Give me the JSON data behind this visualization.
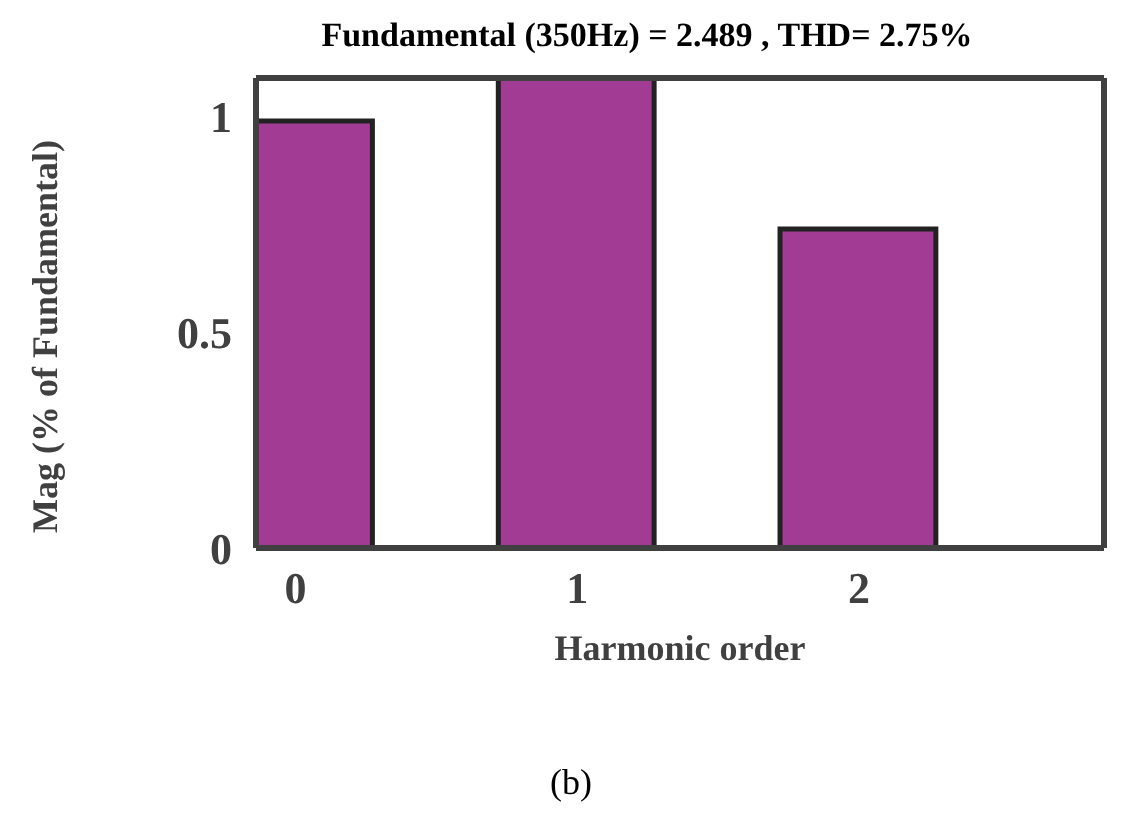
{
  "chart_data": {
    "type": "bar",
    "title": "Fundamental (350Hz) = 2.489 , THD= 2.75%",
    "xlabel": "Harmonic order",
    "ylabel": "Mag (% of Fundamental)",
    "x": [
      0,
      1,
      2
    ],
    "values": [
      0.99,
      1.09,
      0.74
    ],
    "color": "#a23b93",
    "xlim": [
      -0.14,
      2.87
    ],
    "xticks": [
      0,
      1,
      2
    ],
    "ylim": [
      0,
      1.09
    ],
    "yticks": [
      0,
      0.5,
      1
    ],
    "annotations": [
      "(b)"
    ]
  }
}
